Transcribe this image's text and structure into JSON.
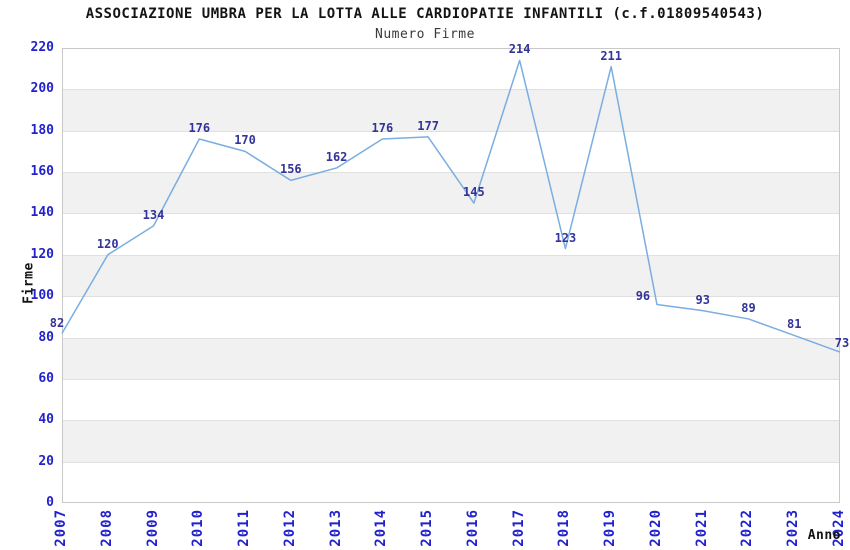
{
  "chart_data": {
    "type": "line",
    "title": "ASSOCIAZIONE UMBRA PER LA LOTTA ALLE CARDIOPATIE INFANTILI (c.f.01809540543)",
    "subtitle": "Numero Firme",
    "xlabel": "Anno",
    "ylabel": "Firme",
    "categories": [
      "2007",
      "2008",
      "2009",
      "2010",
      "2011",
      "2012",
      "2013",
      "2014",
      "2015",
      "2016",
      "2017",
      "2018",
      "2019",
      "2020",
      "2021",
      "2022",
      "2023",
      "2024"
    ],
    "values": [
      82,
      120,
      134,
      176,
      170,
      156,
      162,
      176,
      177,
      145,
      214,
      123,
      211,
      96,
      93,
      89,
      81,
      73
    ],
    "data_labels": [
      "82",
      "120",
      "134",
      "176",
      "170",
      "156",
      "162",
      "176",
      "177",
      "145",
      "214",
      "123",
      "211",
      "96",
      "93",
      "89",
      "81",
      "73"
    ],
    "ylim": [
      0,
      220
    ],
    "yticks": [
      0,
      20,
      40,
      60,
      80,
      100,
      120,
      140,
      160,
      180,
      200,
      220
    ],
    "grid": "horizontal-alternating-bands",
    "legend": "none",
    "colors": {
      "line": "#7aaee0",
      "tick_label": "#2222cc",
      "data_label": "#333399",
      "band": "#f1f1f1",
      "gridline": "#e0e0e0",
      "plot_border": "#c9c9c9",
      "title": "#141414",
      "subtitle": "#3a3a3a",
      "axis_title": "#141414",
      "background": "#ffffff"
    }
  }
}
